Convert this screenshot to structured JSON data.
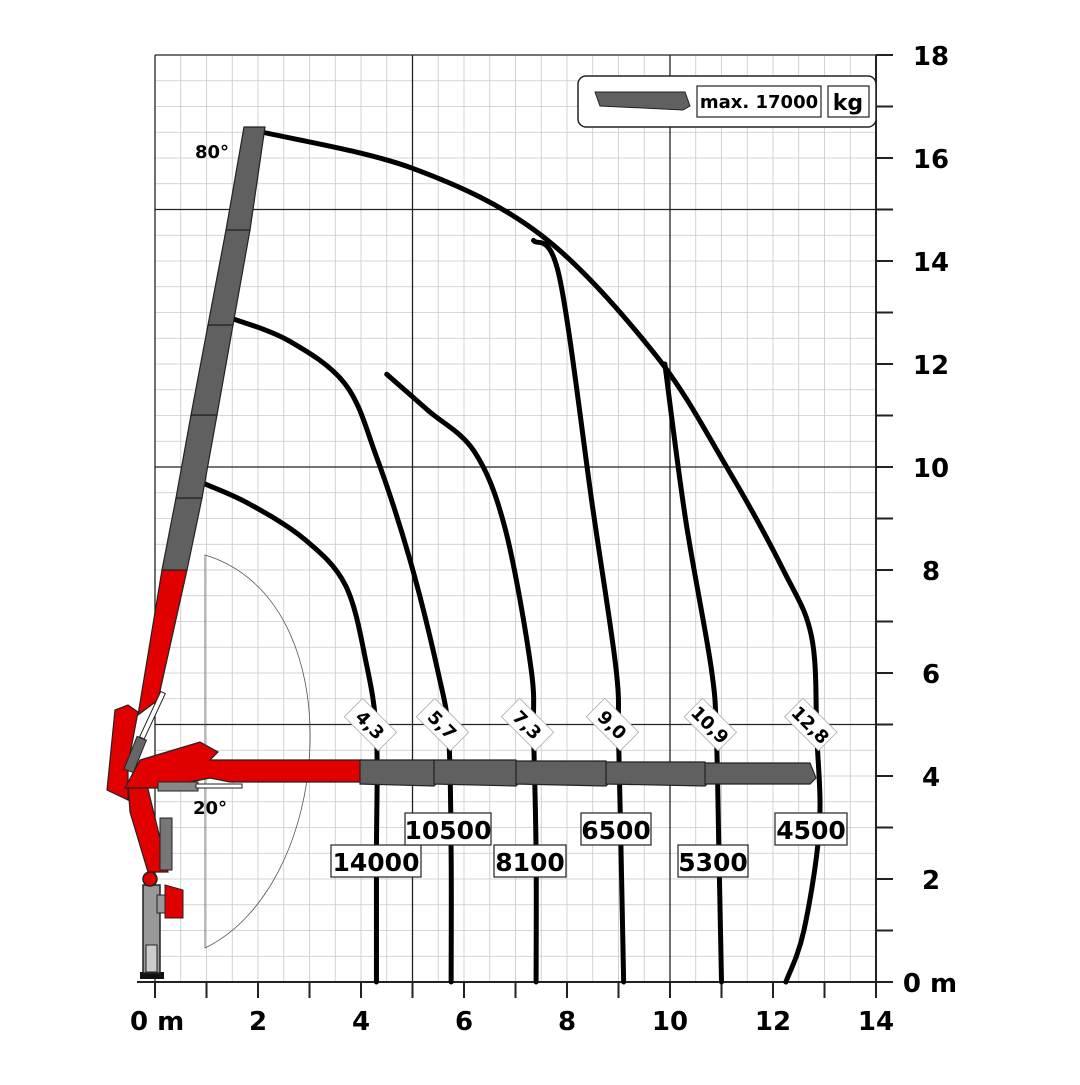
{
  "chart_data": {
    "type": "line",
    "title": "",
    "xlabel": "",
    "ylabel": "",
    "xlim": [
      0,
      14
    ],
    "ylim": [
      0,
      18
    ],
    "x_ticks": [
      "0 m",
      "2",
      "4",
      "6",
      "8",
      "10",
      "12",
      "14"
    ],
    "y_ticks": [
      "0 m",
      "2",
      "4",
      "6",
      "8",
      "10",
      "12",
      "14",
      "16",
      "18"
    ],
    "grid": true,
    "legend": {
      "position": "top-right",
      "label": "max. 17000",
      "unit": "kg"
    },
    "boom_angles": [
      "80°",
      "20°"
    ],
    "series": [
      {
        "reach_label": "4,3",
        "capacity_label": "14000",
        "points": [
          [
            0.9,
            9.7
          ],
          [
            1.8,
            9.3
          ],
          [
            2.9,
            8.6
          ],
          [
            3.7,
            7.7
          ],
          [
            4.1,
            6.2
          ],
          [
            4.3,
            4.8
          ],
          [
            4.3,
            2.5
          ],
          [
            4.3,
            0.0
          ]
        ]
      },
      {
        "reach_label": "5,7",
        "capacity_label": "10500",
        "points": [
          [
            1.45,
            12.9
          ],
          [
            2.6,
            12.45
          ],
          [
            3.7,
            11.6
          ],
          [
            4.3,
            10.2
          ],
          [
            4.95,
            8.2
          ],
          [
            5.5,
            6.0
          ],
          [
            5.7,
            4.8
          ],
          [
            5.75,
            2.5
          ],
          [
            5.75,
            0.0
          ]
        ]
      },
      {
        "reach_label": "7,3",
        "capacity_label": "8100",
        "points": [
          [
            4.5,
            11.8
          ],
          [
            5.3,
            11.1
          ],
          [
            6.2,
            10.3
          ],
          [
            6.8,
            8.8
          ],
          [
            7.3,
            6.1
          ],
          [
            7.35,
            4.8
          ],
          [
            7.4,
            2.5
          ],
          [
            7.4,
            0.0
          ]
        ]
      },
      {
        "reach_label": "9,0",
        "capacity_label": "6500",
        "points": [
          [
            7.35,
            14.4
          ],
          [
            7.85,
            13.7
          ],
          [
            8.5,
            9.2
          ],
          [
            8.95,
            6.1
          ],
          [
            9.0,
            4.8
          ],
          [
            9.05,
            2.5
          ],
          [
            9.1,
            0.0
          ]
        ]
      },
      {
        "reach_label": "10,9",
        "capacity_label": "5300",
        "points": [
          [
            9.9,
            12.0
          ],
          [
            10.3,
            9.0
          ],
          [
            10.8,
            6.1
          ],
          [
            10.9,
            4.8
          ],
          [
            10.95,
            2.5
          ],
          [
            11.0,
            0.0
          ]
        ]
      },
      {
        "reach_label": "12,8",
        "capacity_label": "4500",
        "points": [
          [
            2.1,
            16.5
          ],
          [
            5.0,
            15.8
          ],
          [
            7.5,
            14.5
          ],
          [
            9.7,
            12.2
          ],
          [
            11.1,
            10.0
          ],
          [
            12.2,
            8.0
          ],
          [
            12.75,
            6.7
          ],
          [
            12.85,
            4.8
          ],
          [
            12.9,
            3.0
          ],
          [
            12.6,
            1.0
          ],
          [
            12.25,
            0.0
          ]
        ]
      }
    ]
  }
}
